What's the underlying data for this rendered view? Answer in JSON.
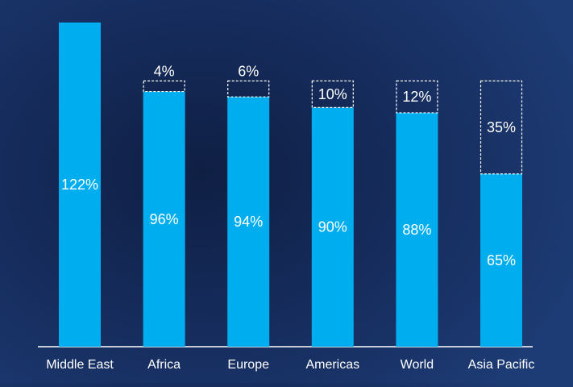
{
  "chart_data": {
    "type": "bar",
    "stacked": true,
    "categories": [
      "Middle East",
      "Africa",
      "Europe",
      "Americas",
      "World",
      "Asia Pacific"
    ],
    "series": [
      {
        "values": [
          122,
          96,
          94,
          90,
          88,
          65
        ],
        "labels": [
          "122%",
          "96%",
          "94%",
          "90%",
          "88%",
          "65%"
        ],
        "style": "solid"
      },
      {
        "values": [
          0,
          4,
          6,
          10,
          12,
          35
        ],
        "labels": [
          "",
          "4%",
          "6%",
          "10%",
          "12%",
          "35%"
        ],
        "style": "dashed-outline"
      }
    ],
    "title": "",
    "xlabel": "",
    "ylabel": "",
    "ylim": [
      0,
      125
    ],
    "grid": false,
    "legend": "none",
    "colors": {
      "bar": "#00aeef",
      "gap_outline": "#ffffff",
      "text": "#ffffff",
      "axis": "#ffffff"
    }
  }
}
